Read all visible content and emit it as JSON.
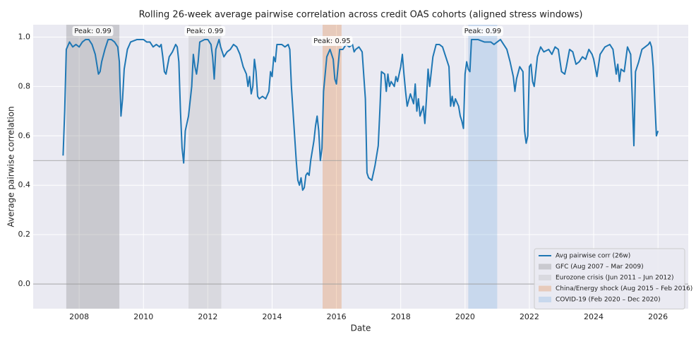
{
  "chart_data": {
    "type": "line",
    "title": "Rolling 26-week average pairwise correlation across credit OAS cohorts (aligned stress windows)",
    "xlabel": "Date",
    "ylabel": "Average pairwise correlation",
    "xlim": [
      2006.57,
      2026.94
    ],
    "ylim": [
      -0.1,
      1.05
    ],
    "xticks": [
      2008,
      2010,
      2012,
      2014,
      2016,
      2018,
      2020,
      2022,
      2024,
      2026
    ],
    "yticks": [
      {
        "value": 0,
        "label": "0.0"
      },
      0.2,
      0.4,
      0.6,
      0.8,
      {
        "value": 1,
        "label": "1.0"
      }
    ],
    "grid": true,
    "legend": "lower right",
    "hlines": [
      0.5,
      0.0
    ],
    "x": [
      2007.5,
      2007.55,
      2007.6,
      2007.7,
      2007.8,
      2007.9,
      2008.0,
      2008.1,
      2008.2,
      2008.3,
      2008.4,
      2008.5,
      2008.55,
      2008.6,
      2008.65,
      2008.7,
      2008.8,
      2008.9,
      2009.0,
      2009.1,
      2009.2,
      2009.25,
      2009.3,
      2009.35,
      2009.4,
      2009.5,
      2009.6,
      2009.8,
      2010.0,
      2010.1,
      2010.2,
      2010.3,
      2010.4,
      2010.5,
      2010.55,
      2010.6,
      2010.65,
      2010.7,
      2010.8,
      2010.9,
      2011.0,
      2011.05,
      2011.1,
      2011.15,
      2011.2,
      2011.25,
      2011.3,
      2011.4,
      2011.5,
      2011.55,
      2011.6,
      2011.65,
      2011.7,
      2011.75,
      2011.9,
      2012.0,
      2012.1,
      2012.15,
      2012.2,
      2012.25,
      2012.35,
      2012.4,
      2012.5,
      2012.6,
      2012.7,
      2012.8,
      2012.9,
      2013.0,
      2013.1,
      2013.2,
      2013.25,
      2013.3,
      2013.35,
      2013.4,
      2013.45,
      2013.5,
      2013.55,
      2013.6,
      2013.7,
      2013.8,
      2013.9,
      2013.95,
      2014.0,
      2014.05,
      2014.1,
      2014.15,
      2014.3,
      2014.4,
      2014.5,
      2014.55,
      2014.6,
      2014.7,
      2014.75,
      2014.8,
      2014.85,
      2014.9,
      2014.95,
      2015.0,
      2015.05,
      2015.1,
      2015.15,
      2015.2,
      2015.3,
      2015.35,
      2015.4,
      2015.45,
      2015.5,
      2015.55,
      2015.6,
      2015.7,
      2015.8,
      2015.9,
      2015.95,
      2016.0,
      2016.05,
      2016.1,
      2016.2,
      2016.3,
      2016.4,
      2016.5,
      2016.55,
      2016.6,
      2016.7,
      2016.8,
      2016.9,
      2016.95,
      2017.0,
      2017.1,
      2017.2,
      2017.3,
      2017.35,
      2017.4,
      2017.5,
      2017.55,
      2017.6,
      2017.65,
      2017.7,
      2017.8,
      2017.85,
      2017.9,
      2018.0,
      2018.05,
      2018.1,
      2018.15,
      2018.2,
      2018.3,
      2018.4,
      2018.45,
      2018.5,
      2018.55,
      2018.6,
      2018.7,
      2018.75,
      2018.8,
      2018.85,
      2018.9,
      2019.0,
      2019.1,
      2019.2,
      2019.3,
      2019.4,
      2019.5,
      2019.55,
      2019.6,
      2019.65,
      2019.7,
      2019.8,
      2019.85,
      2019.9,
      2019.95,
      2020.0,
      2020.05,
      2020.1,
      2020.15,
      2020.2,
      2020.4,
      2020.6,
      2020.8,
      2020.9,
      2021.0,
      2021.1,
      2021.2,
      2021.3,
      2021.4,
      2021.5,
      2021.55,
      2021.6,
      2021.7,
      2021.8,
      2021.85,
      2021.9,
      2021.95,
      2022.0,
      2022.05,
      2022.1,
      2022.15,
      2022.25,
      2022.35,
      2022.45,
      2022.6,
      2022.7,
      2022.8,
      2022.9,
      2023.0,
      2023.1,
      2023.15,
      2023.25,
      2023.35,
      2023.45,
      2023.55,
      2023.65,
      2023.75,
      2023.85,
      2023.95,
      2024.0,
      2024.1,
      2024.2,
      2024.35,
      2024.5,
      2024.6,
      2024.7,
      2024.75,
      2024.8,
      2024.85,
      2024.95,
      2025.05,
      2025.15,
      2025.2,
      2025.25,
      2025.3,
      2025.4,
      2025.5,
      2025.6,
      2025.7,
      2025.75,
      2025.8,
      2025.85,
      2025.9,
      2025.95,
      2026.0
    ],
    "series": [
      {
        "name": "Avg pairwise corr (26w)",
        "color": "#1f77b4",
        "values": [
          0.52,
          0.7,
          0.95,
          0.98,
          0.96,
          0.97,
          0.96,
          0.98,
          0.99,
          0.99,
          0.97,
          0.93,
          0.89,
          0.85,
          0.86,
          0.9,
          0.95,
          0.99,
          0.99,
          0.98,
          0.96,
          0.9,
          0.68,
          0.75,
          0.87,
          0.95,
          0.98,
          0.99,
          0.99,
          0.98,
          0.98,
          0.96,
          0.97,
          0.96,
          0.97,
          0.92,
          0.86,
          0.85,
          0.92,
          0.94,
          0.97,
          0.96,
          0.9,
          0.7,
          0.55,
          0.49,
          0.62,
          0.68,
          0.8,
          0.93,
          0.88,
          0.85,
          0.9,
          0.98,
          0.99,
          0.99,
          0.97,
          0.92,
          0.83,
          0.95,
          0.99,
          0.96,
          0.92,
          0.94,
          0.95,
          0.97,
          0.96,
          0.93,
          0.88,
          0.85,
          0.8,
          0.84,
          0.77,
          0.8,
          0.91,
          0.86,
          0.76,
          0.75,
          0.76,
          0.75,
          0.78,
          0.86,
          0.84,
          0.92,
          0.9,
          0.97,
          0.97,
          0.96,
          0.97,
          0.95,
          0.8,
          0.6,
          0.5,
          0.42,
          0.4,
          0.43,
          0.38,
          0.39,
          0.44,
          0.45,
          0.44,
          0.5,
          0.58,
          0.64,
          0.68,
          0.62,
          0.5,
          0.55,
          0.78,
          0.92,
          0.95,
          0.91,
          0.83,
          0.81,
          0.88,
          0.95,
          0.95,
          0.97,
          0.96,
          0.97,
          0.94,
          0.95,
          0.96,
          0.94,
          0.75,
          0.45,
          0.43,
          0.42,
          0.48,
          0.56,
          0.7,
          0.86,
          0.85,
          0.78,
          0.85,
          0.8,
          0.82,
          0.8,
          0.84,
          0.82,
          0.88,
          0.93,
          0.85,
          0.78,
          0.72,
          0.77,
          0.73,
          0.81,
          0.7,
          0.75,
          0.68,
          0.72,
          0.65,
          0.75,
          0.87,
          0.8,
          0.92,
          0.97,
          0.97,
          0.96,
          0.92,
          0.88,
          0.72,
          0.76,
          0.72,
          0.75,
          0.72,
          0.68,
          0.66,
          0.63,
          0.85,
          0.9,
          0.87,
          0.86,
          0.99,
          0.99,
          0.98,
          0.98,
          0.97,
          0.98,
          0.99,
          0.97,
          0.95,
          0.9,
          0.84,
          0.78,
          0.83,
          0.88,
          0.86,
          0.62,
          0.57,
          0.6,
          0.88,
          0.89,
          0.82,
          0.8,
          0.92,
          0.96,
          0.94,
          0.95,
          0.93,
          0.96,
          0.95,
          0.86,
          0.85,
          0.88,
          0.95,
          0.94,
          0.89,
          0.9,
          0.92,
          0.91,
          0.95,
          0.93,
          0.91,
          0.84,
          0.93,
          0.96,
          0.97,
          0.95,
          0.85,
          0.89,
          0.82,
          0.87,
          0.86,
          0.96,
          0.93,
          0.75,
          0.56,
          0.86,
          0.9,
          0.95,
          0.96,
          0.97,
          0.98,
          0.96,
          0.88,
          0.74,
          0.6,
          0.62
        ]
      }
    ],
    "regions": [
      {
        "name": "GFC (Aug 2007 – Mar 2009)",
        "start": 2007.6,
        "end": 2009.25,
        "color": "#7f7f7f",
        "annotation": "Peak: 0.99"
      },
      {
        "name": "Eurozone crisis (Jun 2011 – Jun 2012)",
        "start": 2011.4,
        "end": 2012.42,
        "color": "#b3b3b3",
        "annotation": "Peak: 0.99"
      },
      {
        "name": "China/Energy shock (Aug 2015 – Feb 2016)",
        "start": 2015.57,
        "end": 2016.16,
        "color": "#e0803a",
        "annotation": "Peak: 0.95"
      },
      {
        "name": "COVID-19 (Feb 2020 – Dec 2020)",
        "start": 2020.1,
        "end": 2021.0,
        "color": "#7aaee0",
        "annotation": "Peak: 0.99"
      }
    ]
  }
}
